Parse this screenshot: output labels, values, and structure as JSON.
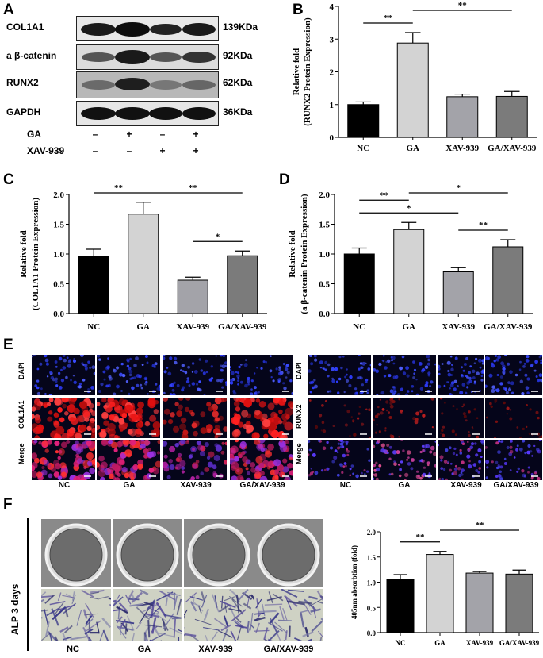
{
  "panels": {
    "A": "A",
    "B": "B",
    "C": "C",
    "D": "D",
    "E": "E",
    "F": "F"
  },
  "western_blot": {
    "rows": [
      {
        "protein": "COL1A1",
        "size": "139KDa"
      },
      {
        "protein": "a β-catenin",
        "size": "92KDa"
      },
      {
        "protein": "RUNX2",
        "size": "62KDa"
      },
      {
        "protein": "GAPDH",
        "size": "36KDa"
      }
    ],
    "conditions": [
      {
        "name": "GA",
        "marks": [
          "–",
          "+",
          "–",
          "+"
        ]
      },
      {
        "name": "XAV-939",
        "marks": [
          "–",
          "–",
          "+",
          "+"
        ]
      }
    ]
  },
  "chart_data": [
    {
      "panel": "B",
      "type": "bar",
      "categories": [
        "NC",
        "GA",
        "XAV-939",
        "GA/XAV-939"
      ],
      "values": [
        1.0,
        2.88,
        1.24,
        1.25
      ],
      "errors": [
        0.08,
        0.32,
        0.08,
        0.15
      ],
      "ylabel": [
        "Relative fold",
        "(RUNX2 Protein Expression)"
      ],
      "ylim": [
        0,
        4
      ],
      "yticks": [
        "0",
        "1",
        "2",
        "3",
        "4"
      ],
      "significance": [
        {
          "from": 0,
          "to": 1,
          "label": "**"
        },
        {
          "from": 1,
          "to": 3,
          "label": "**"
        }
      ],
      "colors": [
        "#000000",
        "#d3d3d3",
        "#a3a3a9",
        "#7b7b7b"
      ]
    },
    {
      "panel": "C",
      "type": "bar",
      "categories": [
        "NC",
        "GA",
        "XAV-939",
        "GA/XAV-939"
      ],
      "values": [
        0.96,
        1.67,
        0.56,
        0.97
      ],
      "errors": [
        0.12,
        0.2,
        0.05,
        0.08
      ],
      "ylabel": [
        "Relative fold",
        "(COL1A1 Protein Expression)"
      ],
      "ylim": [
        0,
        2.0
      ],
      "yticks": [
        "0.0",
        "0.5",
        "1.0",
        "1.5",
        "2.0"
      ],
      "significance": [
        {
          "from": 0,
          "to": 1,
          "label": "**"
        },
        {
          "from": 1,
          "to": 3,
          "label": "**"
        },
        {
          "from": 2,
          "to": 3,
          "label": "*"
        }
      ],
      "colors": [
        "#000000",
        "#d3d3d3",
        "#a3a3a9",
        "#7b7b7b"
      ]
    },
    {
      "panel": "D",
      "type": "bar",
      "categories": [
        "NC",
        "GA",
        "XAV-939",
        "GA/XAV-939"
      ],
      "values": [
        1.0,
        1.41,
        0.7,
        1.12
      ],
      "errors": [
        0.1,
        0.12,
        0.07,
        0.12
      ],
      "ylabel": [
        "Relative fold",
        "(a β-catenin Protein Expression)"
      ],
      "ylim": [
        0,
        2.0
      ],
      "yticks": [
        "0.0",
        "0.5",
        "1.0",
        "1.5",
        "2.0"
      ],
      "significance": [
        {
          "from": 0,
          "to": 2,
          "label": "*"
        },
        {
          "from": 0,
          "to": 1,
          "label": "**"
        },
        {
          "from": 1,
          "to": 3,
          "label": "*"
        },
        {
          "from": 2,
          "to": 3,
          "label": "**"
        }
      ],
      "colors": [
        "#000000",
        "#d3d3d3",
        "#a3a3a9",
        "#7b7b7b"
      ]
    },
    {
      "panel": "F",
      "type": "bar",
      "categories": [
        "NC",
        "GA",
        "XAV-939",
        "GA/XAV-939"
      ],
      "values": [
        1.06,
        1.55,
        1.18,
        1.16
      ],
      "errors": [
        0.09,
        0.06,
        0.03,
        0.08
      ],
      "ylabel": [
        "405nm absorbtion (fold)"
      ],
      "ylim": [
        0,
        2.0
      ],
      "yticks": [
        "0.0",
        "0.5",
        "1.0",
        "1.5",
        "2.0"
      ],
      "significance": [
        {
          "from": 0,
          "to": 1,
          "label": "**"
        },
        {
          "from": 1,
          "to": 3,
          "label": "**"
        }
      ],
      "colors": [
        "#000000",
        "#d3d3d3",
        "#a3a3a9",
        "#7b7b7b"
      ]
    }
  ],
  "fluorescence": {
    "left": {
      "rows": [
        "DAPI",
        "COL1A1",
        "Merge"
      ]
    },
    "right": {
      "rows": [
        "DAPI",
        "RUNX2",
        "Merge"
      ]
    },
    "columns": [
      "NC",
      "GA",
      "XAV-939",
      "GA/XAV-939"
    ]
  },
  "alp": {
    "side_label": "ALP 3 days",
    "columns": [
      "NC",
      "GA",
      "XAV-939",
      "GA/XAV-939"
    ]
  }
}
